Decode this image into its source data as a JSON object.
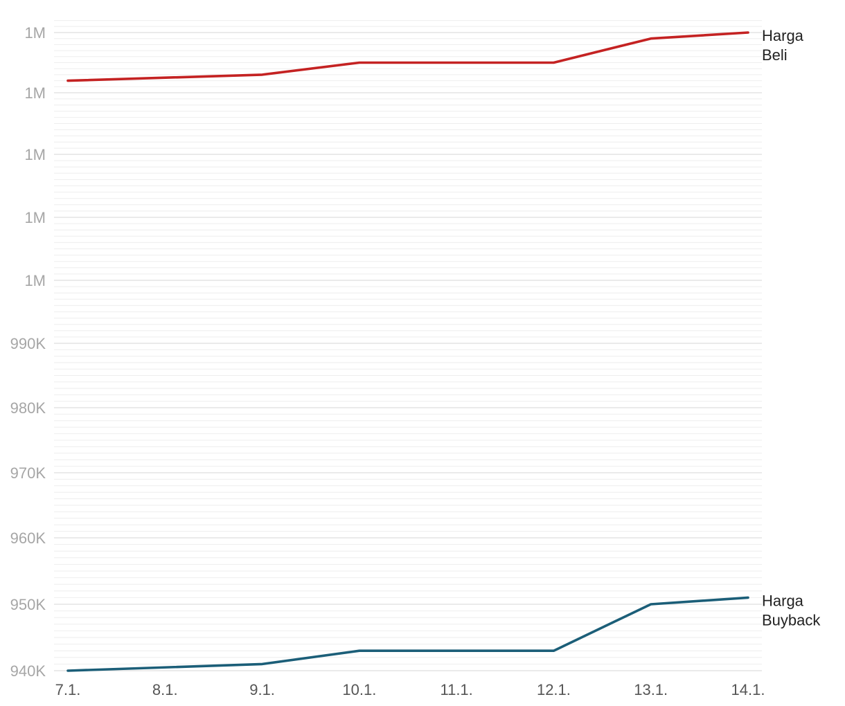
{
  "chart_data": {
    "type": "line",
    "categories": [
      "7.1.",
      "8.1.",
      "9.1.",
      "10.1.",
      "11.1.",
      "12.1.",
      "13.1.",
      "14.1."
    ],
    "x_tick_labels": [
      "7.1.",
      "8.1.",
      "9.1.",
      "10.1.",
      "11.1.",
      "12.1.",
      "13.1.",
      "14.1."
    ],
    "y_ticks": [
      940000,
      950000,
      960000,
      970000,
      980000,
      990000,
      1000000,
      1010000,
      1020000,
      1030000,
      1040000
    ],
    "y_tick_labels": [
      "940K",
      "950K",
      "960K",
      "970K",
      "980K",
      "990K",
      "1M",
      "1M",
      "1M",
      "1M",
      "1M"
    ],
    "ylim": [
      940000,
      1040000
    ],
    "minor_ticks_per_major": 9,
    "grid": true,
    "legend": "none (series labelled at line ends, right)",
    "series": [
      {
        "name": "Harga Beli",
        "name_lines": [
          "Harga",
          "Beli"
        ],
        "color": "#c42222",
        "points": [
          {
            "x": "7.1.",
            "y": 1032000
          },
          {
            "x": "9.1.",
            "y": 1033000
          },
          {
            "x": "10.1.",
            "y": 1035000
          },
          {
            "x": "12.1.",
            "y": 1035000
          },
          {
            "x": "13.1.",
            "y": 1039000
          },
          {
            "x": "14.1.",
            "y": 1040000
          }
        ]
      },
      {
        "name": "Harga Buyback",
        "name_lines": [
          "Harga",
          "Buyback"
        ],
        "color": "#1b5e78",
        "points": [
          {
            "x": "7.1.",
            "y": 940000
          },
          {
            "x": "9.1.",
            "y": 941000
          },
          {
            "x": "10.1.",
            "y": 943000
          },
          {
            "x": "12.1.",
            "y": 943000
          },
          {
            "x": "13.1.",
            "y": 950000
          },
          {
            "x": "14.1.",
            "y": 951000
          }
        ]
      }
    ]
  }
}
